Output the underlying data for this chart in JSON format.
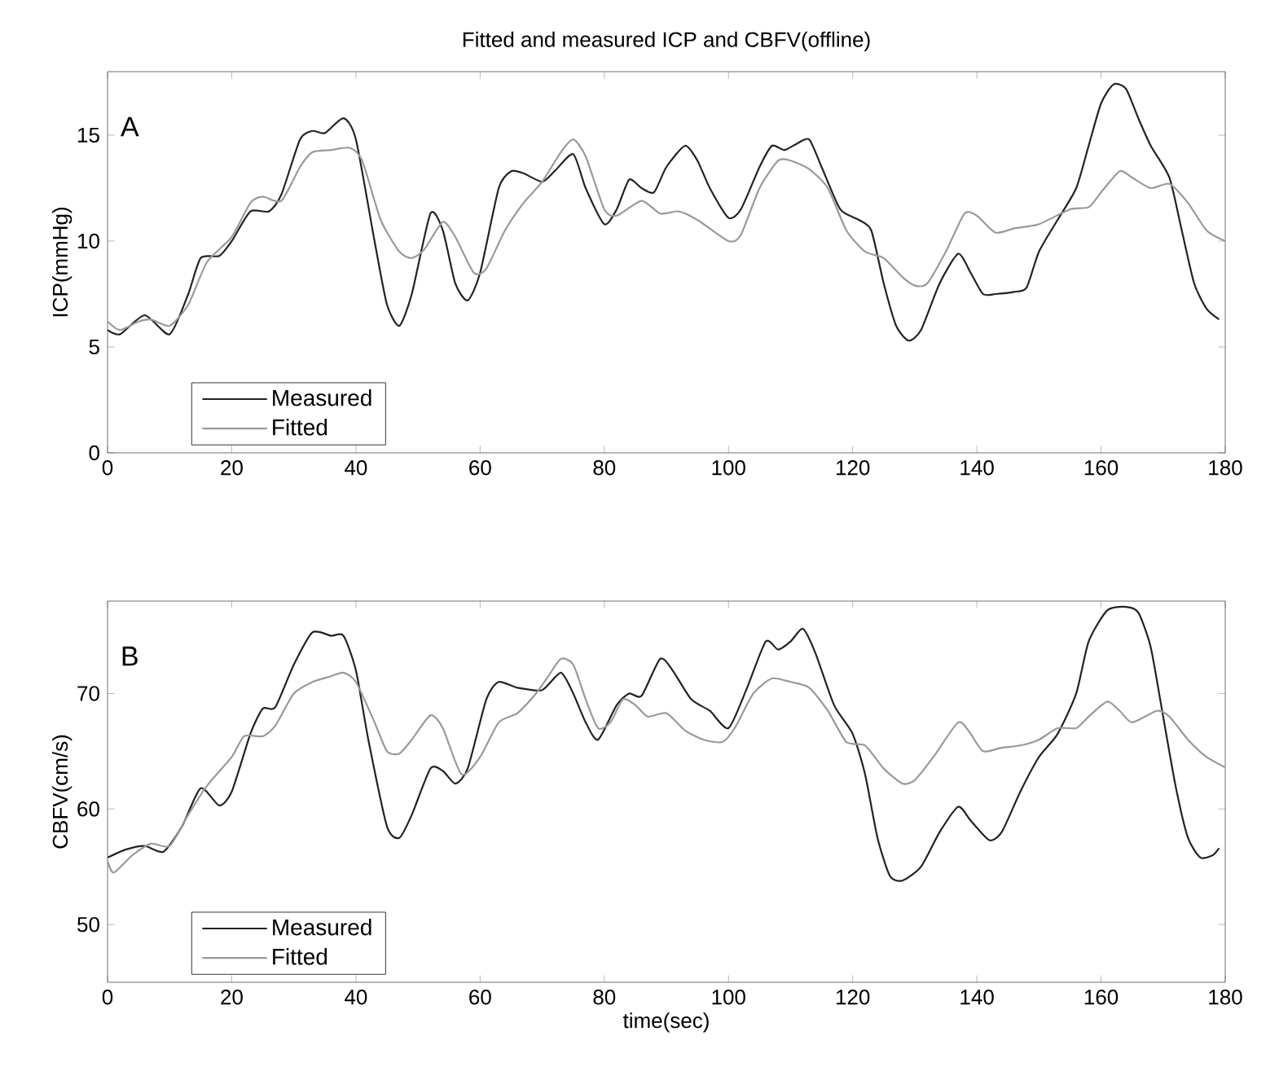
{
  "chart_data": [
    {
      "type": "line",
      "title": "Fitted and measured ICP and CBFV(offline)",
      "ylabel": "ICP(mmHg)",
      "annotations": [
        "A"
      ],
      "xlim": [
        0,
        180
      ],
      "ylim": [
        0,
        18
      ],
      "xticks": [
        0,
        20,
        40,
        60,
        80,
        100,
        120,
        140,
        160,
        180
      ],
      "yticks": [
        0,
        5,
        10,
        15
      ],
      "legend": "bottom left",
      "grid": false,
      "line_style": "solid",
      "series": [
        {
          "name": "Measured",
          "color": "#222222",
          "x": [
            0,
            2,
            6,
            10,
            13,
            15,
            18,
            20,
            23,
            26,
            28,
            31,
            33,
            35,
            38,
            40,
            43,
            45,
            47,
            49,
            52,
            54,
            56,
            58,
            60,
            63,
            65,
            67,
            70,
            72,
            75,
            77,
            80,
            82,
            84,
            86,
            88,
            90,
            93,
            95,
            97,
            100,
            102,
            105,
            107,
            109,
            111,
            113,
            115,
            118,
            121,
            123,
            125,
            127,
            129,
            131,
            134,
            137,
            139,
            141,
            143,
            146,
            148,
            150,
            153,
            156,
            158,
            160,
            162,
            164,
            166,
            168,
            171,
            173,
            175,
            177,
            179
          ],
          "values": [
            5.8,
            5.6,
            6.5,
            5.6,
            7.5,
            9.2,
            9.3,
            10.0,
            11.4,
            11.4,
            12.2,
            14.8,
            15.2,
            15.1,
            15.8,
            14.8,
            10.0,
            7.0,
            6.0,
            7.5,
            11.3,
            10.5,
            8.0,
            7.2,
            8.5,
            12.5,
            13.3,
            13.2,
            12.8,
            13.3,
            14.1,
            12.5,
            10.8,
            11.5,
            12.9,
            12.5,
            12.3,
            13.5,
            14.5,
            13.8,
            12.5,
            11.1,
            11.5,
            13.5,
            14.5,
            14.3,
            14.6,
            14.8,
            13.5,
            11.5,
            11.0,
            10.5,
            8.0,
            6.0,
            5.3,
            5.8,
            8.0,
            9.4,
            8.5,
            7.5,
            7.5,
            7.6,
            7.8,
            9.5,
            11.0,
            12.5,
            14.5,
            16.5,
            17.4,
            17.2,
            15.8,
            14.5,
            13.0,
            10.5,
            8.0,
            6.8,
            6.3
          ]
        },
        {
          "name": "Fitted",
          "color": "#999999",
          "x": [
            0,
            2,
            5,
            7,
            10,
            13,
            16,
            20,
            23,
            25,
            28,
            31,
            33,
            36,
            39,
            41,
            44,
            47,
            49,
            51,
            54,
            56,
            59,
            61,
            64,
            67,
            70,
            73,
            75,
            77,
            80,
            82,
            86,
            89,
            92,
            95,
            100,
            102,
            105,
            108,
            110,
            113,
            116,
            119,
            122,
            125,
            128,
            130,
            132,
            135,
            138,
            140,
            143,
            146,
            150,
            155,
            158,
            160,
            163,
            165,
            168,
            171,
            174,
            177,
            180
          ],
          "values": [
            6.2,
            5.8,
            6.2,
            6.3,
            6.0,
            7.0,
            9.0,
            10.2,
            11.8,
            12.1,
            11.9,
            13.5,
            14.2,
            14.3,
            14.4,
            13.8,
            11.0,
            9.5,
            9.2,
            9.6,
            10.9,
            10.2,
            8.5,
            8.7,
            10.5,
            11.8,
            12.8,
            14.2,
            14.8,
            14.0,
            11.5,
            11.2,
            11.9,
            11.3,
            11.4,
            11.0,
            10.0,
            10.3,
            12.5,
            13.8,
            13.8,
            13.4,
            12.5,
            10.5,
            9.5,
            9.2,
            8.3,
            7.9,
            8.0,
            9.5,
            11.3,
            11.2,
            10.4,
            10.6,
            10.8,
            11.5,
            11.6,
            12.3,
            13.3,
            13.0,
            12.5,
            12.7,
            11.8,
            10.5,
            10.0
          ]
        }
      ]
    },
    {
      "type": "line",
      "xlabel": "time(sec)",
      "ylabel": "CBFV(cm/s)",
      "annotations": [
        "B"
      ],
      "xlim": [
        0,
        180
      ],
      "ylim": [
        45,
        78
      ],
      "xticks": [
        0,
        20,
        40,
        60,
        80,
        100,
        120,
        140,
        160,
        180
      ],
      "yticks": [
        50,
        60,
        70
      ],
      "legend": "bottom left",
      "grid": false,
      "line_style": "solid",
      "series": [
        {
          "name": "Measured",
          "color": "#222222",
          "x": [
            0,
            3,
            6,
            9,
            12,
            15,
            18,
            20,
            23,
            25,
            27,
            30,
            33,
            36,
            38,
            40,
            42,
            45,
            47,
            49,
            52,
            54,
            56,
            58,
            61,
            63,
            66,
            70,
            73,
            75,
            77,
            79,
            82,
            84,
            86,
            89,
            91,
            94,
            97,
            100,
            103,
            106,
            108,
            110,
            112,
            114,
            117,
            120,
            122,
            124,
            126,
            128,
            131,
            134,
            137,
            139,
            142,
            144,
            147,
            150,
            153,
            156,
            158,
            161,
            164,
            166,
            168,
            170,
            172,
            174,
            176,
            178,
            179
          ],
          "values": [
            55.8,
            56.5,
            56.8,
            56.3,
            58.5,
            61.8,
            60.3,
            61.5,
            66.5,
            68.7,
            68.8,
            72.5,
            75.3,
            75.0,
            75.0,
            72.0,
            66.0,
            58.5,
            57.5,
            59.5,
            63.5,
            63.3,
            62.2,
            63.5,
            69.5,
            71.0,
            70.5,
            70.3,
            71.8,
            70.0,
            67.5,
            66.0,
            69.0,
            70.0,
            69.8,
            73.0,
            72.0,
            69.5,
            68.5,
            67.0,
            70.5,
            74.5,
            73.8,
            74.5,
            75.6,
            73.5,
            69.0,
            66.5,
            63.0,
            57.5,
            54.2,
            53.8,
            55.0,
            58.0,
            60.2,
            59.0,
            57.3,
            58.0,
            61.5,
            64.5,
            66.5,
            70.0,
            74.5,
            77.2,
            77.5,
            77.0,
            74.0,
            68.0,
            62.0,
            57.5,
            55.8,
            56.0,
            56.6
          ]
        },
        {
          "name": "Fitted",
          "color": "#999999",
          "x": [
            0,
            1,
            4,
            7,
            10,
            13,
            16,
            20,
            22,
            25,
            27,
            30,
            33,
            36,
            38,
            40,
            43,
            45,
            47,
            49,
            52,
            54,
            57,
            60,
            63,
            66,
            69,
            71,
            73,
            75,
            77,
            79,
            81,
            83,
            85,
            87,
            90,
            93,
            96,
            99,
            101,
            104,
            107,
            110,
            113,
            116,
            119,
            122,
            125,
            128,
            130,
            133,
            137,
            139,
            141,
            144,
            147,
            150,
            153,
            156,
            158,
            161,
            163,
            165,
            169,
            171,
            174,
            177,
            180
          ],
          "values": [
            55.5,
            54.5,
            56.0,
            57.0,
            56.8,
            59.5,
            62.0,
            64.5,
            66.3,
            66.3,
            67.2,
            70.0,
            71.0,
            71.5,
            71.8,
            71.0,
            67.5,
            65.0,
            64.8,
            66.0,
            68.1,
            67.0,
            63.0,
            64.5,
            67.5,
            68.3,
            70.0,
            71.5,
            73.0,
            72.5,
            69.5,
            67.0,
            67.5,
            69.5,
            69.0,
            68.0,
            68.3,
            66.8,
            66.0,
            65.8,
            67.0,
            70.0,
            71.3,
            71.0,
            70.5,
            68.5,
            65.8,
            65.5,
            63.5,
            62.2,
            62.5,
            64.5,
            67.5,
            66.5,
            65.0,
            65.3,
            65.5,
            66.0,
            67.0,
            67.0,
            68.0,
            69.3,
            68.5,
            67.5,
            68.5,
            68.0,
            66.0,
            64.5,
            63.6
          ]
        }
      ]
    }
  ]
}
